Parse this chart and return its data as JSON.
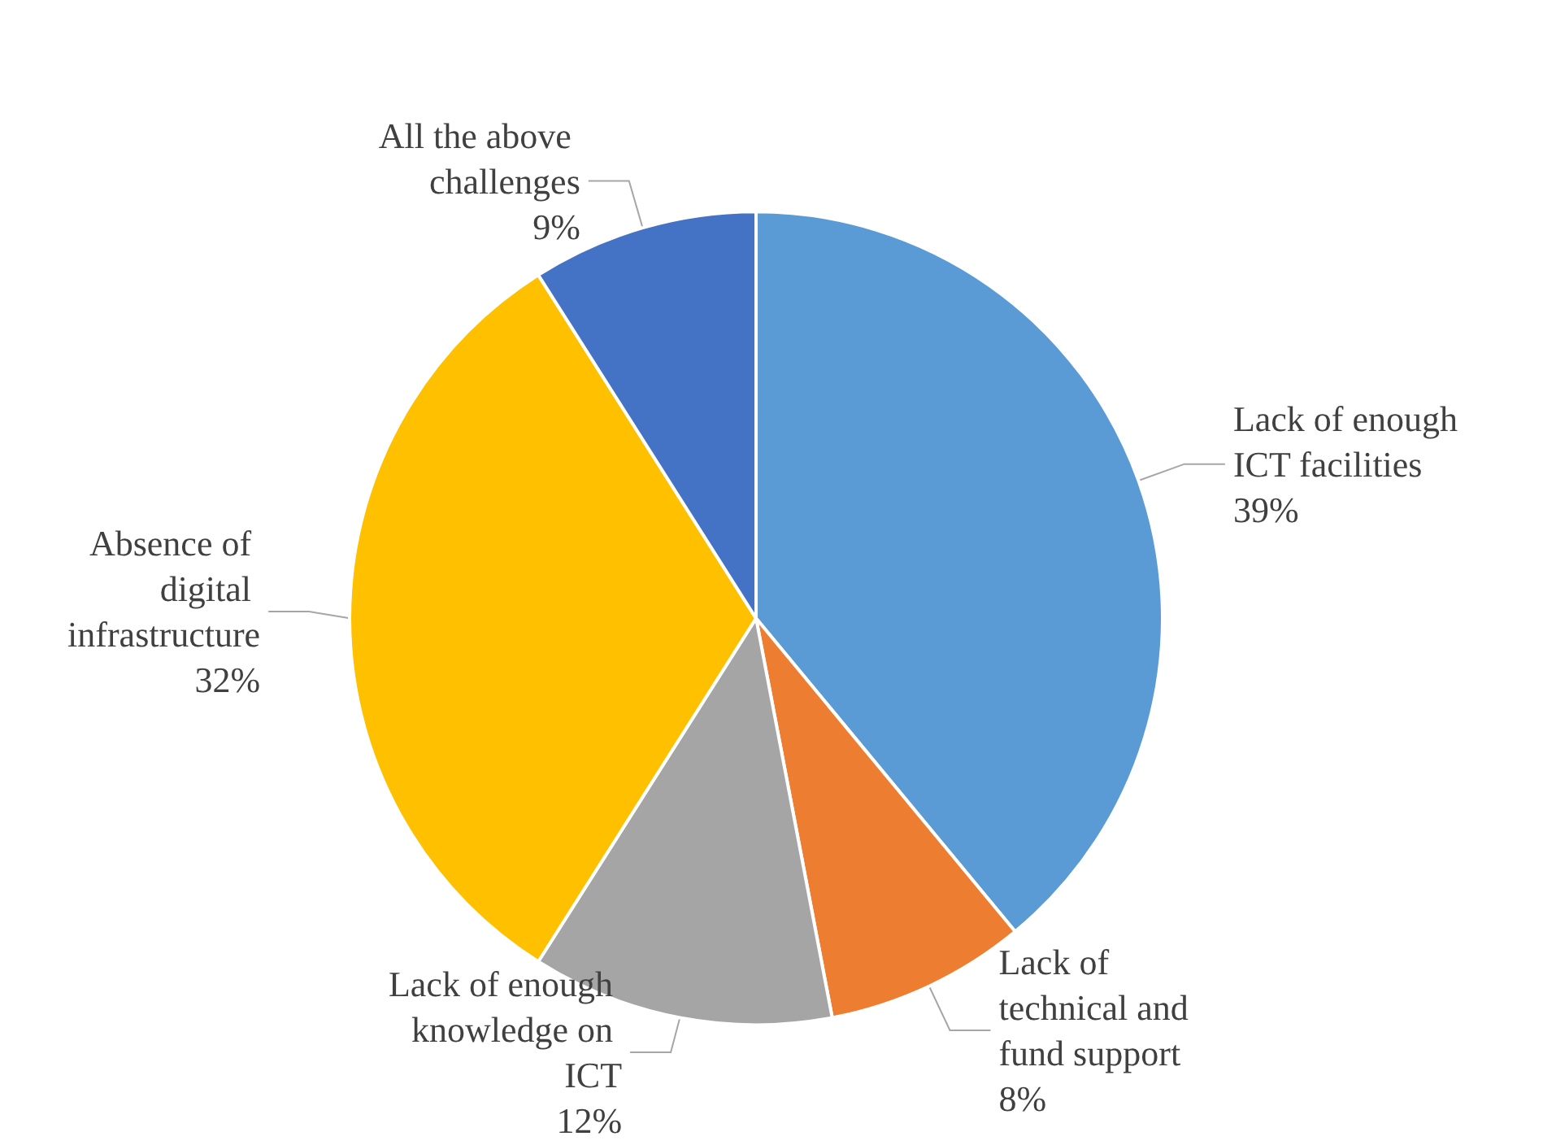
{
  "chart_data": {
    "type": "pie",
    "categories": [
      "Lack of enough ICT facilities",
      "Lack of technical and fund support",
      "Lack of enough knowledge on ICT",
      "Absence of digital infrastructure",
      "All the above challenges"
    ],
    "values": [
      39,
      8,
      12,
      32,
      9
    ],
    "value_labels": [
      "39%",
      "8%",
      "12%",
      "32%",
      "9%"
    ],
    "colors": [
      "#5b9bd5",
      "#ed7d31",
      "#a5a5a5",
      "#ffc000",
      "#4472c4"
    ],
    "legend": false
  }
}
